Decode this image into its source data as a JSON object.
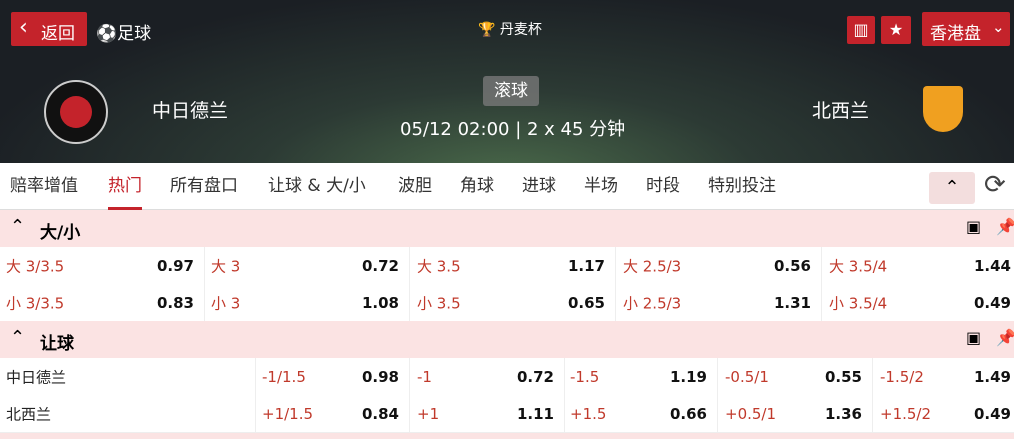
{
  "header": {
    "back": "返回",
    "sport": "足球",
    "league": "丹麦杯",
    "status": "滚球",
    "datetime": "05/12 02:00 | 2 x 45 分钟",
    "home": "中日德兰",
    "away": "北西兰",
    "market": "香港盘"
  },
  "tabs": [
    "赔率增值",
    "热门",
    "所有盘口",
    "让球 & 大/小",
    "波胆",
    "角球",
    "进球",
    "半场",
    "时段",
    "特别投注"
  ],
  "sections": [
    {
      "title": "大/小",
      "rows": [
        {
          "cells": [
            {
              "label": "大 3/3.5",
              "odds": "0.97"
            },
            {
              "label": "大 3",
              "odds": "0.72"
            },
            {
              "label": "大 3.5",
              "odds": "1.17"
            },
            {
              "label": "大 2.5/3",
              "odds": "0.56"
            },
            {
              "label": "大 3.5/4",
              "odds": "1.44"
            }
          ]
        },
        {
          "cells": [
            {
              "label": "小 3/3.5",
              "odds": "0.83"
            },
            {
              "label": "小 3",
              "odds": "1.08"
            },
            {
              "label": "小 3.5",
              "odds": "0.65"
            },
            {
              "label": "小 2.5/3",
              "odds": "1.31"
            },
            {
              "label": "小 3.5/4",
              "odds": "0.49"
            }
          ]
        }
      ]
    },
    {
      "title": "让球",
      "rows": [
        {
          "team": "中日德兰",
          "cells": [
            {
              "label": "-1/1.5",
              "odds": "0.98"
            },
            {
              "label": "-1",
              "odds": "0.72"
            },
            {
              "label": "-1.5",
              "odds": "1.19"
            },
            {
              "label": "-0.5/1",
              "odds": "0.55"
            },
            {
              "label": "-1.5/2",
              "odds": "1.49"
            }
          ]
        },
        {
          "team": "北西兰",
          "cells": [
            {
              "label": "+1/1.5",
              "odds": "0.84"
            },
            {
              "label": "+1",
              "odds": "1.11"
            },
            {
              "label": "+1.5",
              "odds": "0.66"
            },
            {
              "label": "+0.5/1",
              "odds": "1.36"
            },
            {
              "label": "+1.5/2",
              "odds": "0.49"
            }
          ]
        }
      ]
    }
  ]
}
